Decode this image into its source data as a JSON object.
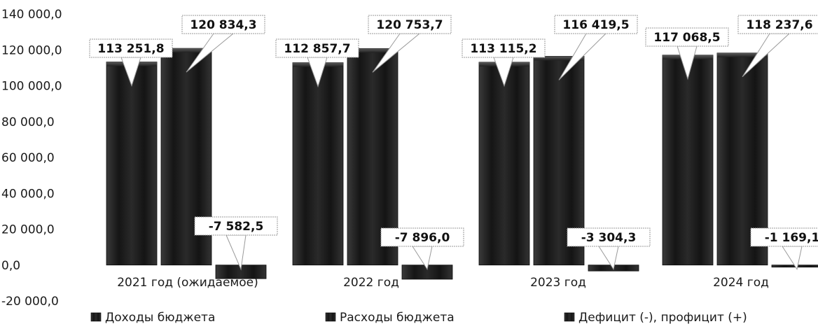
{
  "chart_data": {
    "type": "bar",
    "categories": [
      "2021 год (ожидаемое)",
      "2022 год",
      "2023 год",
      "2024 год"
    ],
    "series": [
      {
        "name": "Доходы бюджета",
        "values": [
          113251.8,
          112857.7,
          113115.2,
          117068.5
        ],
        "labels": [
          "113 251,8",
          "112 857,7",
          "113 115,2",
          "117 068,5"
        ]
      },
      {
        "name": "Расходы бюджета",
        "values": [
          120834.3,
          120753.7,
          116419.5,
          118237.6
        ],
        "labels": [
          "120 834,3",
          "120 753,7",
          "116 419,5",
          "118 237,6"
        ]
      },
      {
        "name": "Дефицит (-), профицит (+)",
        "values": [
          -7582.5,
          -7896.0,
          -3304.3,
          -1169.1
        ],
        "labels": [
          "-7 582,5",
          "-7 896,0",
          "-3 304,3",
          "-1 169,1"
        ]
      }
    ],
    "ylim": [
      -20000,
      140000
    ],
    "yticks": [
      -20000,
      0,
      20000,
      40000,
      60000,
      80000,
      100000,
      120000,
      140000
    ],
    "ytick_labels": [
      "-20 000,0",
      "0,0",
      "20 000,0",
      "40 000,0",
      "60 000,0",
      "80 000,0",
      "100 000,0",
      "120 000,0",
      "140 000,0"
    ],
    "grid": false,
    "legend_position": "bottom",
    "colors": {
      "bar": "#1e1e1e",
      "bar_edge": "#0a0a0a",
      "label_border": "#9a9a9a"
    }
  }
}
